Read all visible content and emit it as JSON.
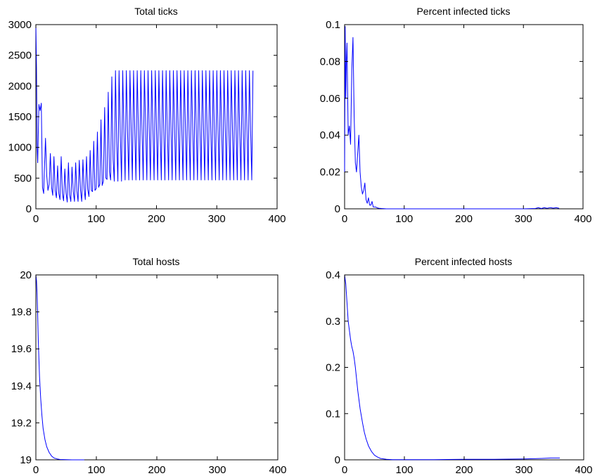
{
  "colors": {
    "line": "#0000ff",
    "axes": "#000000",
    "background": "#ffffff"
  },
  "chart_data": [
    {
      "id": "total-ticks",
      "type": "line",
      "title": "Total ticks",
      "xlabel": "",
      "ylabel": "",
      "xlim": [
        0,
        400
      ],
      "ylim": [
        0,
        3000
      ],
      "xticks": [
        0,
        100,
        200,
        300,
        400
      ],
      "yticks": [
        0,
        500,
        1000,
        1500,
        2000,
        2500,
        3000
      ],
      "grid": false,
      "series": [
        {
          "x": [
            0,
            1,
            2,
            3,
            5,
            7,
            9,
            11,
            13,
            14,
            16,
            18,
            20,
            22,
            24,
            26,
            28,
            30,
            32,
            34,
            36,
            38,
            40,
            42,
            44,
            46,
            48,
            50,
            52,
            54,
            56,
            58,
            60,
            62,
            64,
            66,
            68,
            70,
            72,
            74,
            76,
            78,
            80,
            82,
            84,
            86,
            88,
            90,
            92,
            94,
            96,
            98,
            100,
            102,
            104,
            106,
            108,
            110,
            112,
            114,
            116,
            118,
            120,
            122,
            124,
            126,
            128,
            130,
            132,
            134,
            136,
            138,
            140,
            142,
            144,
            146,
            148,
            150,
            152,
            154,
            156,
            158,
            160,
            162,
            164,
            166,
            168,
            170,
            172,
            174,
            176,
            178,
            180,
            182,
            184,
            186,
            188,
            190,
            192,
            194,
            196,
            198,
            200,
            202,
            204,
            206,
            208,
            210,
            212,
            214,
            216,
            218,
            220,
            222,
            224,
            226,
            228,
            230,
            232,
            234,
            236,
            238,
            240,
            242,
            244,
            246,
            248,
            250,
            252,
            254,
            256,
            258,
            260,
            262,
            264,
            266,
            268,
            270,
            272,
            274,
            276,
            278,
            280,
            282,
            284,
            286,
            288,
            290,
            292,
            294,
            296,
            298,
            300,
            302,
            304,
            306,
            308,
            310,
            312,
            314,
            316,
            318,
            320,
            322,
            324,
            326,
            328,
            330,
            332,
            334,
            336,
            338,
            340,
            342,
            344,
            346,
            348,
            350,
            352,
            354,
            356,
            358,
            360
          ],
          "y": [
            3000,
            2300,
            1000,
            750,
            1700,
            1600,
            1720,
            350,
            250,
            600,
            1150,
            550,
            300,
            400,
            900,
            350,
            220,
            850,
            300,
            180,
            700,
            250,
            150,
            850,
            250,
            130,
            650,
            260,
            110,
            750,
            230,
            120,
            680,
            280,
            120,
            750,
            290,
            120,
            790,
            300,
            120,
            800,
            330,
            150,
            850,
            320,
            200,
            950,
            300,
            280,
            1100,
            300,
            330,
            1250,
            350,
            400,
            1450,
            380,
            450,
            1650,
            500,
            480,
            1900,
            600,
            470,
            2150,
            800,
            450,
            2250,
            1100,
            450,
            2250,
            1200,
            450,
            2250,
            1250,
            470,
            2250,
            1270,
            470,
            2250,
            1300,
            470,
            2250,
            1300,
            470,
            2250,
            1300,
            470,
            2250,
            1300,
            470,
            2250,
            1300,
            470,
            2250,
            1300,
            470,
            2250,
            1300,
            470,
            2250,
            1300,
            470,
            2250,
            1300,
            470,
            2250,
            1300,
            470,
            2250,
            1300,
            470,
            2250,
            1300,
            470,
            2250,
            1300,
            470,
            2250,
            1300,
            470,
            2250,
            1300,
            470,
            2250,
            1300,
            470,
            2250,
            1300,
            470,
            2250,
            1300,
            470,
            2250,
            1300,
            470,
            2250,
            1300,
            470,
            2250,
            1300,
            470,
            2250,
            1300,
            470,
            2250,
            1300,
            470,
            2250,
            1300,
            470,
            2250,
            1300,
            470,
            2250,
            1300,
            470,
            2250,
            1300,
            470,
            2250,
            1300,
            470,
            2250,
            1300,
            470,
            2250,
            1300,
            470,
            2250,
            1300,
            470,
            2250,
            1300,
            470,
            2250,
            1300,
            470,
            2250,
            1300,
            470,
            2250
          ]
        }
      ]
    },
    {
      "id": "percent-infected-ticks",
      "type": "line",
      "title": "Percent infected ticks",
      "xlabel": "",
      "ylabel": "",
      "xlim": [
        0,
        400
      ],
      "ylim": [
        0,
        0.1
      ],
      "xticks": [
        0,
        100,
        200,
        300,
        400
      ],
      "yticks": [
        0,
        0.02,
        0.04,
        0.06,
        0.08,
        0.1
      ],
      "grid": false,
      "series": [
        {
          "x": [
            0,
            1,
            2,
            3,
            4,
            6,
            8,
            10,
            12,
            14,
            16,
            18,
            20,
            22,
            24,
            26,
            28,
            30,
            32,
            34,
            36,
            38,
            40,
            42,
            44,
            46,
            48,
            50,
            52,
            55,
            58,
            62,
            66,
            70,
            80,
            100,
            150,
            200,
            250,
            300,
            320,
            325,
            330,
            335,
            340,
            345,
            350,
            355,
            360
          ],
          "y": [
            0.02,
            0.099,
            0.06,
            0.08,
            0.09,
            0.04,
            0.045,
            0.035,
            0.075,
            0.093,
            0.05,
            0.025,
            0.02,
            0.03,
            0.04,
            0.02,
            0.012,
            0.008,
            0.01,
            0.014,
            0.005,
            0.003,
            0.006,
            0.002,
            0.002,
            0.004,
            0.001,
            0.001,
            0.001,
            0.0005,
            0.0003,
            0.0002,
            0.0001,
            0,
            0,
            0,
            0,
            0,
            0,
            0,
            0.0002,
            0.0006,
            0.0002,
            0.0006,
            0.0003,
            0.0007,
            0.0004,
            0.0006,
            0.0003
          ]
        }
      ]
    },
    {
      "id": "total-hosts",
      "type": "line",
      "title": "Total hosts",
      "xlabel": "",
      "ylabel": "",
      "xlim": [
        0,
        400
      ],
      "ylim": [
        19,
        20
      ],
      "xticks": [
        0,
        100,
        200,
        300,
        400
      ],
      "yticks": [
        19,
        19.2,
        19.4,
        19.6,
        19.8,
        20
      ],
      "grid": false,
      "series": [
        {
          "x": [
            0,
            1,
            2,
            3,
            4,
            5,
            6,
            8,
            10,
            12,
            15,
            18,
            22,
            26,
            30,
            35,
            40,
            50,
            60,
            70,
            80
          ],
          "y": [
            20,
            19.97,
            19.9,
            19.78,
            19.65,
            19.55,
            19.45,
            19.33,
            19.24,
            19.17,
            19.11,
            19.07,
            19.04,
            19.02,
            19.01,
            19.005,
            19.002,
            19.001,
            19.0,
            19.0,
            19.0
          ]
        }
      ]
    },
    {
      "id": "percent-infected-hosts",
      "type": "line",
      "title": "Percent infected hosts",
      "xlabel": "",
      "ylabel": "",
      "xlim": [
        0,
        400
      ],
      "ylim": [
        0,
        0.4
      ],
      "xticks": [
        0,
        100,
        200,
        300,
        400
      ],
      "yticks": [
        0,
        0.1,
        0.2,
        0.3,
        0.4
      ],
      "grid": false,
      "series": [
        {
          "x": [
            0,
            2,
            4,
            6,
            8,
            10,
            12,
            14,
            16,
            18,
            20,
            22,
            24,
            26,
            28,
            30,
            33,
            36,
            40,
            45,
            50,
            55,
            60,
            70,
            80,
            100,
            150,
            200,
            250,
            300,
            330,
            345,
            360
          ],
          "y": [
            0.4,
            0.38,
            0.34,
            0.3,
            0.28,
            0.26,
            0.245,
            0.235,
            0.22,
            0.2,
            0.175,
            0.15,
            0.13,
            0.11,
            0.095,
            0.08,
            0.06,
            0.045,
            0.03,
            0.018,
            0.01,
            0.006,
            0.003,
            0.001,
            0.0005,
            0.0003,
            0.0005,
            0.001,
            0.001,
            0.002,
            0.003,
            0.004,
            0.004
          ]
        }
      ]
    }
  ]
}
